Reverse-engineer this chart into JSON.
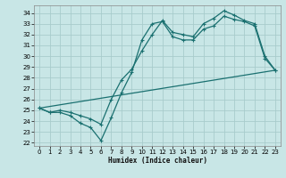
{
  "xlabel": "Humidex (Indice chaleur)",
  "bg_color": "#c8e6e6",
  "grid_color": "#a8cccc",
  "line_color": "#1a7070",
  "xlim": [
    -0.5,
    23.5
  ],
  "ylim": [
    21.7,
    34.7
  ],
  "xticks": [
    0,
    1,
    2,
    3,
    4,
    5,
    6,
    7,
    8,
    9,
    10,
    11,
    12,
    13,
    14,
    15,
    16,
    17,
    18,
    19,
    20,
    21,
    22,
    23
  ],
  "yticks": [
    22,
    23,
    24,
    25,
    26,
    27,
    28,
    29,
    30,
    31,
    32,
    33,
    34
  ],
  "line1_x": [
    0,
    1,
    2,
    3,
    4,
    5,
    6,
    7,
    8,
    9,
    10,
    11,
    12,
    13,
    14,
    15,
    16,
    17,
    18,
    19,
    20,
    21,
    22,
    23
  ],
  "line1_y": [
    25.2,
    24.8,
    24.8,
    24.5,
    23.8,
    23.4,
    22.2,
    24.3,
    26.6,
    28.5,
    31.5,
    33.0,
    33.2,
    31.8,
    31.5,
    31.5,
    32.5,
    32.8,
    33.7,
    33.4,
    33.2,
    32.8,
    29.8,
    28.7
  ],
  "line2_x": [
    0,
    1,
    2,
    3,
    4,
    5,
    6,
    7,
    8,
    9,
    10,
    11,
    12,
    13,
    14,
    15,
    16,
    17,
    18,
    19,
    20,
    21,
    22,
    23
  ],
  "line2_y": [
    25.2,
    24.8,
    25.0,
    24.8,
    24.5,
    24.2,
    23.7,
    26.0,
    27.8,
    28.8,
    30.5,
    32.0,
    33.3,
    32.2,
    32.0,
    31.8,
    33.0,
    33.5,
    34.2,
    33.8,
    33.3,
    33.0,
    30.0,
    28.7
  ],
  "line3_x": [
    0,
    23
  ],
  "line3_y": [
    25.2,
    28.7
  ]
}
